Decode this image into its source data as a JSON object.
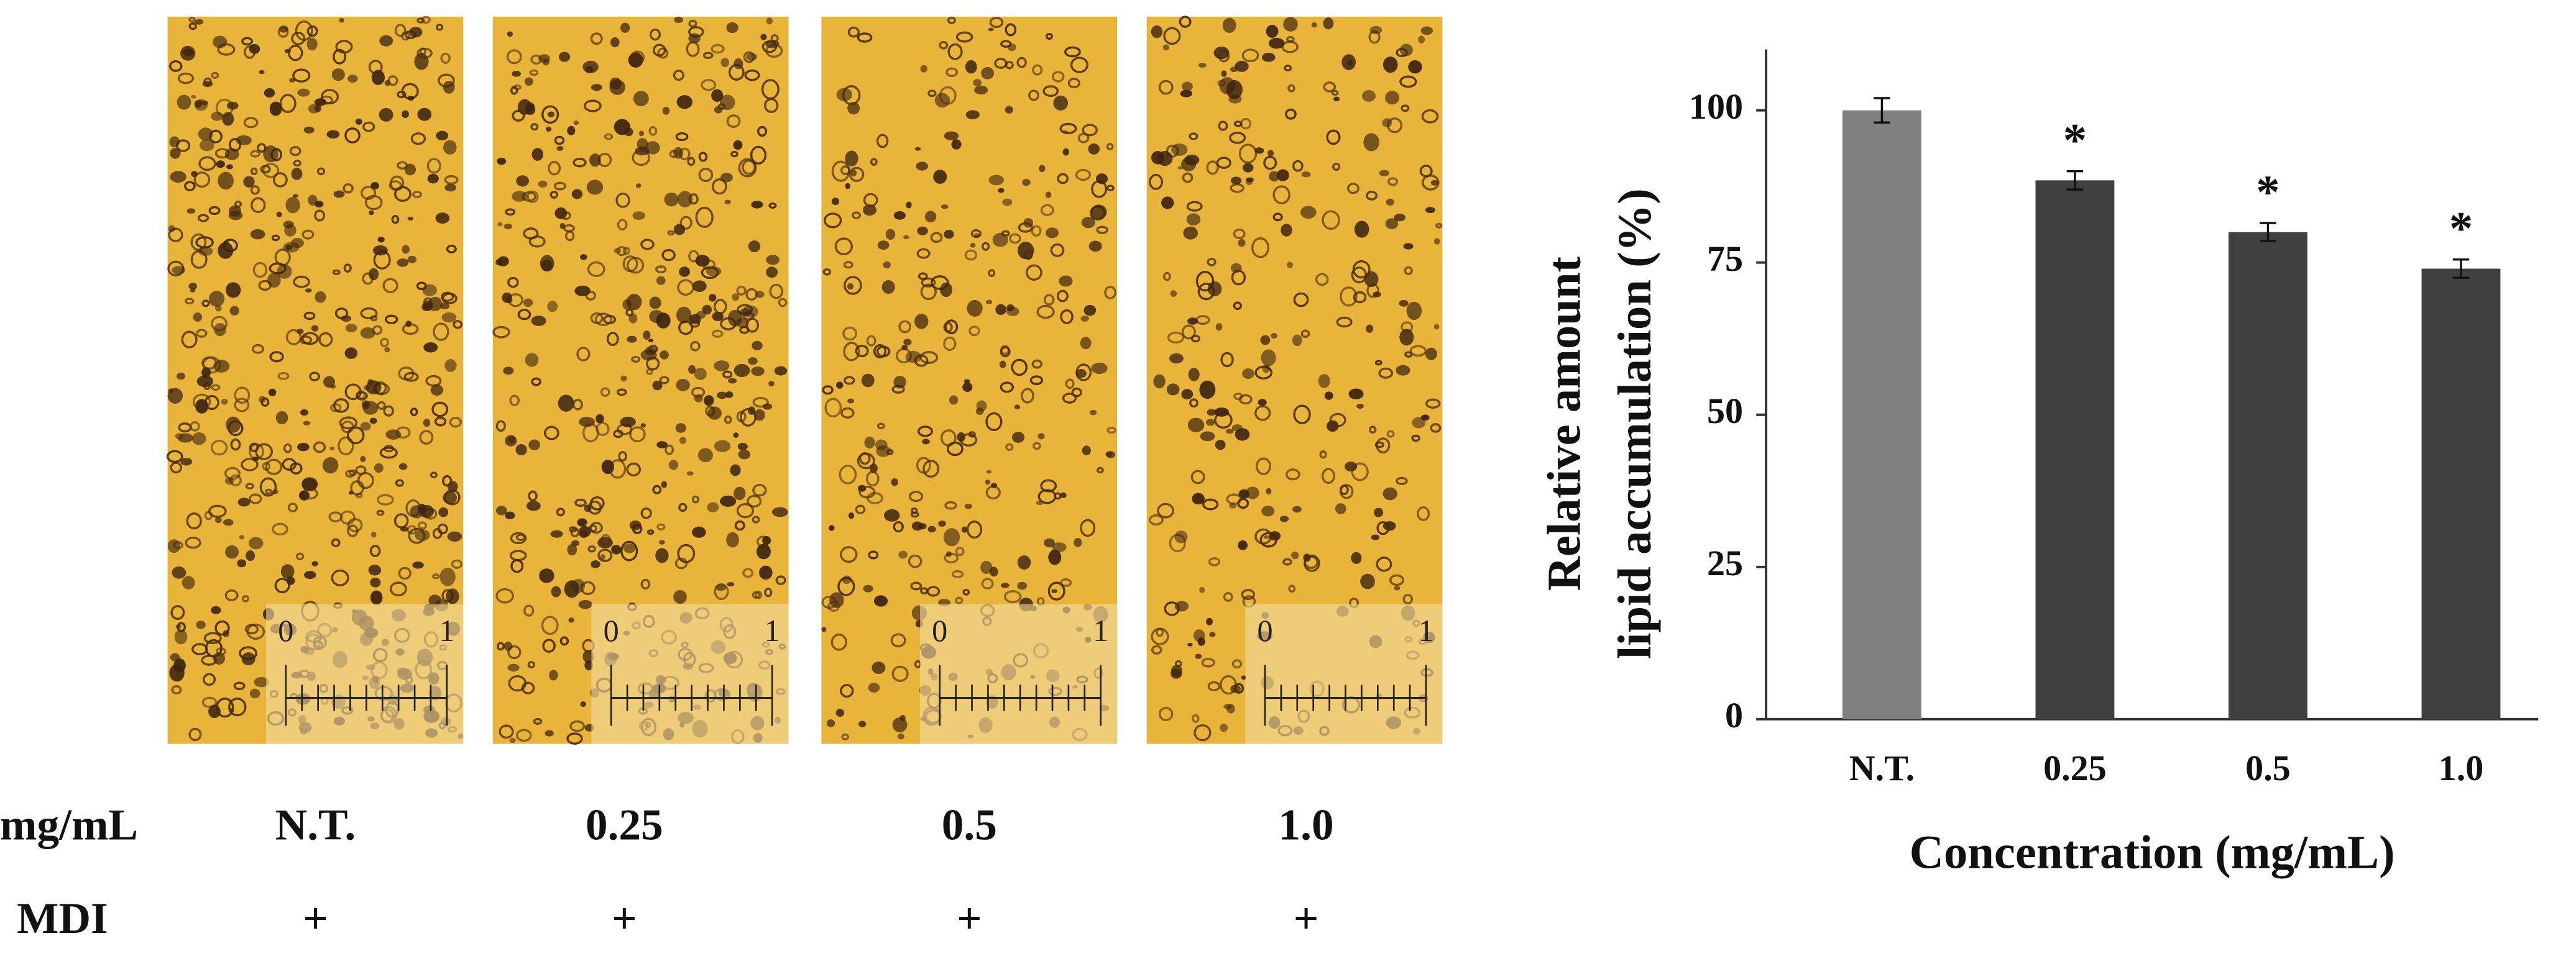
{
  "panels": [
    {
      "concentration": "N.T.",
      "mdi": "+",
      "scale_start": "0",
      "scale_end": "1"
    },
    {
      "concentration": "0.25",
      "mdi": "+",
      "scale_start": "0",
      "scale_end": "1"
    },
    {
      "concentration": "0.5",
      "mdi": "+",
      "scale_start": "0",
      "scale_end": "1"
    },
    {
      "concentration": "1.0",
      "mdi": "+",
      "scale_start": "0",
      "scale_end": "1"
    }
  ],
  "row_labels": [
    "mg/mL",
    "MDI"
  ],
  "chart_data": {
    "type": "bar",
    "categories": [
      "N.T.",
      "0.25",
      "0.5",
      "1.0"
    ],
    "values": [
      100,
      88.5,
      80,
      74
    ],
    "errors": [
      2,
      1.5,
      1.5,
      1.5
    ],
    "annotations": [
      null,
      "*",
      "*",
      "*"
    ],
    "colors": [
      "#808080",
      "#404040",
      "#404040",
      "#404040"
    ],
    "ylabel": [
      "Relative amount",
      "lipid accumulation (%)"
    ],
    "xlabel": "Concentration (mg/mL)",
    "ylim": [
      0,
      110
    ],
    "yticks": [
      0,
      25,
      50,
      75,
      100
    ],
    "grid": false
  }
}
